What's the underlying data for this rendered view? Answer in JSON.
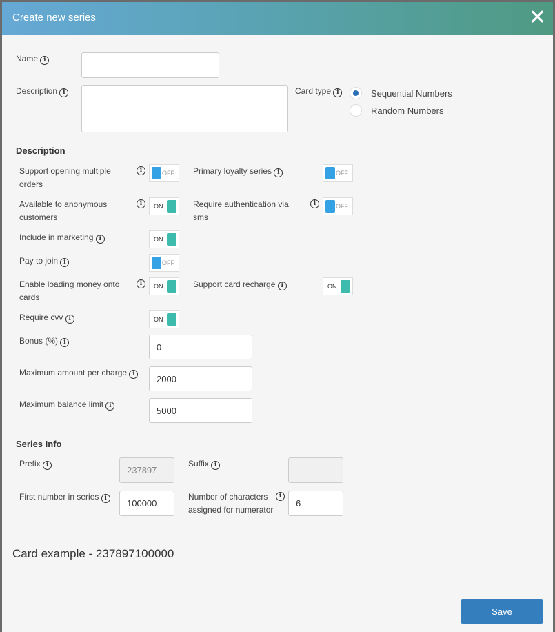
{
  "dialog": {
    "title": "Create new series",
    "close": "✕"
  },
  "name": {
    "label": "Name",
    "value": ""
  },
  "description_field": {
    "label": "Description",
    "value": ""
  },
  "card_type": {
    "label": "Card type",
    "options": [
      "Sequential Numbers",
      "Random Numbers"
    ],
    "selected": "Sequential Numbers"
  },
  "section_description": "Description",
  "toggles": [
    {
      "label": "Support opening multiple orders",
      "state": "OFF"
    },
    {
      "label": "Primary loyalty series",
      "state": "OFF"
    },
    {
      "label": "Available to anonymous customers",
      "state": "ON"
    },
    {
      "label": "Require authentication via sms",
      "state": "OFF"
    },
    {
      "label": "Include in marketing",
      "state": "ON"
    },
    {
      "label": "Pay to join",
      "state": "OFF"
    },
    {
      "label": "Enable loading money onto cards",
      "state": "ON"
    },
    {
      "label": "Support card recharge",
      "state": "ON"
    },
    {
      "label": "Require cvv",
      "state": "ON"
    }
  ],
  "bonus": {
    "label": "Bonus (%)",
    "value": "0"
  },
  "max_charge": {
    "label": "Maximum amount per charge",
    "value": "2000"
  },
  "max_balance": {
    "label": "Maximum balance limit",
    "value": "5000"
  },
  "section_series": "Series Info",
  "prefix": {
    "label": "Prefix",
    "value": "237897"
  },
  "suffix": {
    "label": "Suffix",
    "value": ""
  },
  "first_number": {
    "label": "First number in series",
    "value": "100000"
  },
  "num_chars": {
    "label": "Number of characters assigned for numerator",
    "value": "6"
  },
  "card_example": "Card example - 237897100000",
  "save_label": "Save",
  "colors": {
    "off_knob": "#35a2e6",
    "on_knob": "#3dbbad",
    "save": "#357ebd"
  }
}
